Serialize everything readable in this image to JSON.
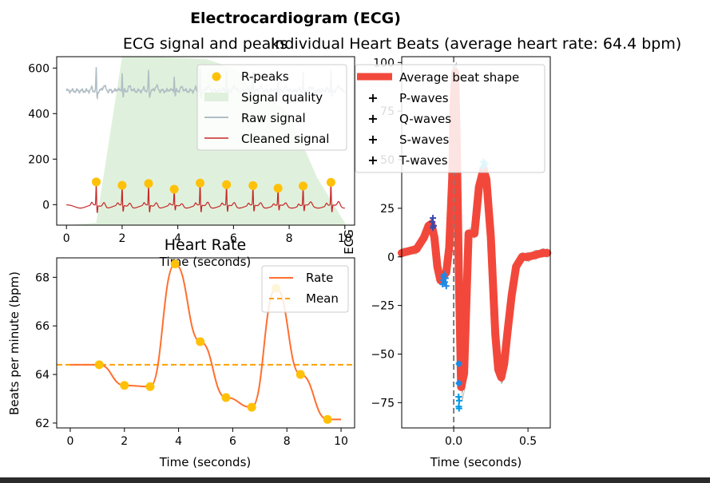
{
  "figure_title": "Electrocardiogram (ECG)",
  "colors": {
    "raw": "#b0bec5",
    "cleaned": "#c62828",
    "rpeak": "#ffc107",
    "quality": "#dff1dc",
    "rate": "#ff6f2f",
    "mean": "#ffa000",
    "avg": "#f2483b",
    "pwave": "#3949ab",
    "qwave": "#1e88e5",
    "swave": "#039be5",
    "twave": "#26c6da"
  },
  "chart_data": [
    {
      "id": "signal",
      "type": "line",
      "title": "ECG signal and peaks",
      "xlabel": "Time (seconds)",
      "ylabel": "",
      "xlim": [
        -0.35,
        10.35
      ],
      "ylim": [
        -90,
        650
      ],
      "xticks": [
        0,
        2,
        4,
        6,
        8,
        10
      ],
      "yticks": [
        0,
        200,
        400,
        600
      ],
      "legend": [
        "R-peaks",
        "Signal quality",
        "Raw signal",
        "Cleaned signal"
      ],
      "legend_position": "top-right",
      "rpeaks": {
        "x": [
          1.07,
          2.0,
          2.95,
          3.87,
          4.8,
          5.75,
          6.7,
          7.6,
          8.5,
          9.5
        ],
        "y": [
          100,
          85,
          93,
          68,
          95,
          88,
          84,
          72,
          82,
          98
        ]
      },
      "signal_quality": {
        "x": [
          0,
          1.07,
          2.0,
          3.0,
          4.0,
          5.0,
          6.0,
          7.0,
          8.0,
          9.0,
          9.5,
          10.0
        ],
        "y": [
          -90,
          -80,
          650,
          650,
          645,
          640,
          600,
          500,
          400,
          120,
          20,
          -80
        ]
      },
      "raw_signal_baseline": 500,
      "cleaned_signal_baseline": 0
    },
    {
      "id": "heart-rate",
      "type": "line",
      "title": "Heart Rate",
      "xlabel": "Time (seconds)",
      "ylabel": "Beats per minute (bpm)",
      "xlim": [
        -0.5,
        10.5
      ],
      "ylim": [
        61.8,
        68.8
      ],
      "xticks": [
        0,
        2,
        4,
        6,
        8,
        10
      ],
      "yticks": [
        62,
        64,
        66,
        68
      ],
      "legend": [
        "Rate",
        "Mean"
      ],
      "legend_position": "top-right",
      "mean": 64.4,
      "series": [
        {
          "name": "Rate",
          "x": [
            0,
            1.07,
            2.0,
            2.95,
            3.87,
            4.8,
            5.75,
            6.7,
            7.6,
            8.5,
            9.5,
            10.0
          ],
          "y": [
            64.4,
            64.4,
            63.55,
            63.5,
            68.55,
            65.35,
            63.05,
            62.65,
            67.55,
            64.0,
            62.15,
            62.15
          ]
        }
      ],
      "points": {
        "x": [
          1.07,
          2.0,
          2.95,
          3.87,
          4.8,
          5.75,
          6.7,
          7.6,
          8.5,
          9.5
        ],
        "y": [
          64.4,
          63.55,
          63.5,
          68.55,
          65.35,
          63.05,
          62.65,
          67.55,
          64.0,
          62.15
        ]
      }
    },
    {
      "id": "heart-beats",
      "type": "line",
      "title": "Individual Heart Beats (average heart rate: 64.4 bpm)",
      "xlabel": "Time (seconds)",
      "ylabel": "ECG",
      "xlim": [
        -0.35,
        0.65
      ],
      "ylim": [
        -88,
        103
      ],
      "xticks": [
        0.0,
        0.5
      ],
      "xtick_labels": [
        "0.0",
        "0.5"
      ],
      "yticks": [
        -75,
        -50,
        -25,
        0,
        25,
        50,
        75,
        100
      ],
      "legend": [
        "Average beat shape",
        "P-waves",
        "Q-waves",
        "S-waves",
        "T-waves"
      ],
      "legend_position": "top-right",
      "average_beat": {
        "x": [
          -0.35,
          -0.25,
          -0.2,
          -0.17,
          -0.15,
          -0.13,
          -0.11,
          -0.09,
          -0.07,
          -0.05,
          -0.03,
          -0.01,
          0.0,
          0.01,
          0.02,
          0.035,
          0.05,
          0.07,
          0.1,
          0.14,
          0.17,
          0.2,
          0.22,
          0.25,
          0.28,
          0.3,
          0.32,
          0.34,
          0.36,
          0.39,
          0.42,
          0.46,
          0.5,
          0.55,
          0.6,
          0.63
        ],
        "y": [
          2,
          4,
          10,
          16,
          17,
          10,
          -5,
          -12,
          -10,
          -8,
          5,
          40,
          80,
          95,
          60,
          -10,
          -67,
          -60,
          12,
          12,
          36,
          45,
          40,
          10,
          -40,
          -58,
          -62,
          -55,
          -40,
          -20,
          -5,
          0,
          0,
          1,
          2,
          2
        ]
      },
      "p_waves": {
        "x": [
          -0.14,
          -0.145,
          -0.135,
          -0.14
        ],
        "y": [
          20,
          18,
          16,
          15
        ]
      },
      "q_waves": {
        "x": [
          -0.065,
          -0.07,
          -0.055,
          -0.06,
          -0.075,
          -0.05
        ],
        "y": [
          -9,
          -12,
          -11,
          -13,
          -14,
          -15
        ]
      },
      "s_waves": {
        "x": [
          0.035,
          0.035,
          0.033,
          0.037,
          0.034,
          0.036
        ],
        "y": [
          -55,
          -65,
          -72,
          -74,
          -77,
          -78
        ]
      },
      "t_waves": {
        "x": [
          0.2,
          0.21,
          0.205,
          0.195
        ],
        "y": [
          49,
          48,
          47,
          46
        ]
      }
    }
  ]
}
